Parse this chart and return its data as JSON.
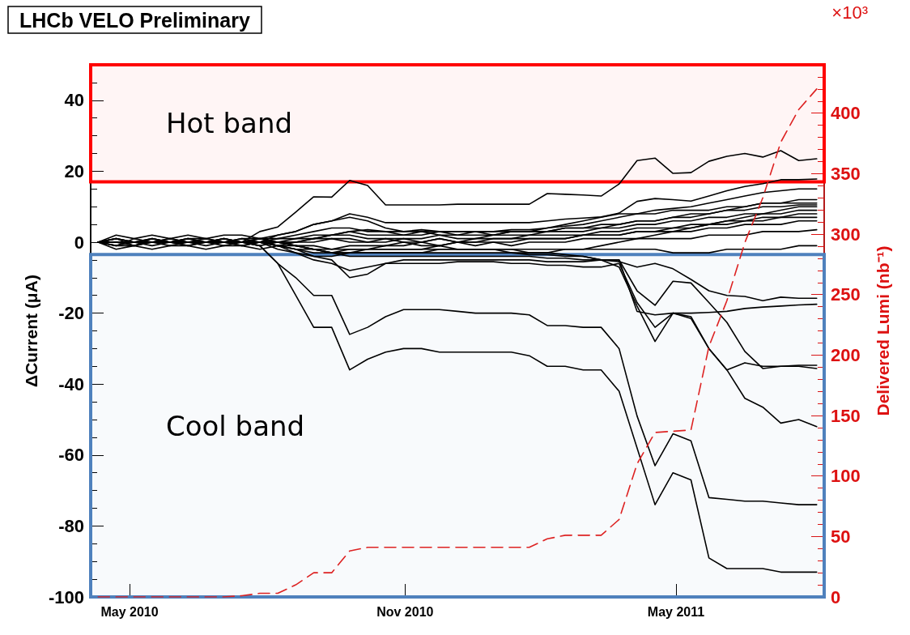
{
  "chart_data": {
    "type": "line",
    "title": "LHCb VELO Preliminary",
    "ylabel": "ΔCurrent (μA)",
    "y2label": "Delivered Lumi (nb⁻¹)",
    "annotations": [
      "×10³"
    ],
    "x": [
      "2010-04-10",
      "2010-04-22",
      "2010-05-04",
      "2010-05-16",
      "2010-05-28",
      "2010-06-09",
      "2010-06-21",
      "2010-07-03",
      "2010-07-15",
      "2010-07-27",
      "2010-08-08",
      "2010-08-20",
      "2010-09-01",
      "2010-09-13",
      "2010-09-25",
      "2010-10-07",
      "2010-10-19",
      "2010-10-31",
      "2010-11-12",
      "2010-11-24",
      "2010-12-06",
      "2010-12-18",
      "2010-12-30",
      "2011-01-11",
      "2011-01-23",
      "2011-02-04",
      "2011-02-16",
      "2011-02-28",
      "2011-03-12",
      "2011-03-24",
      "2011-04-05",
      "2011-04-17",
      "2011-04-29",
      "2011-05-11",
      "2011-05-23",
      "2011-06-04",
      "2011-06-16",
      "2011-06-28",
      "2011-07-10",
      "2011-07-22",
      "2011-08-03"
    ],
    "xlim": [
      "2010-04-05",
      "2011-08-08"
    ],
    "xticks": [
      {
        "value": "2010-05-01",
        "label": "May 2010"
      },
      {
        "value": "2010-11-01",
        "label": "Nov 2010"
      },
      {
        "value": "2011-05-01",
        "label": "May 2011"
      }
    ],
    "ylim": [
      -100,
      50
    ],
    "yticks": [
      -100,
      -80,
      -60,
      -40,
      -20,
      0,
      20,
      40
    ],
    "y2lim": [
      0,
      440
    ],
    "y2ticks": [
      0,
      50,
      100,
      150,
      200,
      250,
      300,
      350,
      400
    ],
    "marker": "none",
    "line_style": "solid",
    "bands": [
      {
        "axis": "y",
        "from": 17,
        "to": 50,
        "label": "Hot band",
        "color": "#ff0000"
      },
      {
        "axis": "y",
        "from": -100,
        "to": -3.5,
        "label": "Cool band",
        "color": "#4f81bd"
      }
    ],
    "series": [
      {
        "color": "#000000",
        "values": [
          0,
          0,
          0,
          0,
          0,
          0,
          0,
          0,
          0,
          -1,
          -6,
          -15,
          -24,
          -24,
          -36,
          -33,
          -31,
          -30,
          -30,
          -31,
          -31,
          -31,
          -31,
          -31,
          -32,
          -35,
          -35,
          -36,
          -36,
          -42,
          -58,
          -74,
          -65,
          -67,
          -89,
          -92,
          -92,
          -92,
          -93,
          -93,
          -93
        ]
      },
      {
        "color": "#000000",
        "values": [
          0,
          0,
          0,
          0,
          0,
          0,
          0,
          0,
          0,
          -1,
          -6,
          -10,
          -15,
          -15,
          -26,
          -24,
          -21,
          -19,
          -19,
          -19,
          -19.5,
          -20,
          -20,
          -20,
          -20.5,
          -23.5,
          -23.5,
          -24,
          -24,
          -30,
          -49,
          -63,
          -54,
          -56,
          -72,
          -72.5,
          -73,
          -73,
          -73.5,
          -74,
          -74
        ]
      },
      {
        "color": "#000000",
        "values": [
          0,
          0,
          0,
          0,
          0,
          0,
          0,
          0,
          0,
          0,
          -1,
          -3,
          -5,
          -6,
          -8,
          -7,
          -6,
          -6,
          -6,
          -6,
          -5.5,
          -5.5,
          -5.5,
          -6,
          -6,
          -6.5,
          -6.5,
          -7,
          -7,
          -6,
          -17,
          -24,
          -20,
          -21,
          -30,
          -36,
          -44,
          -46.5,
          -51,
          -50,
          -52
        ]
      },
      {
        "color": "#000000",
        "values": [
          0,
          0,
          0,
          0,
          0,
          0,
          0,
          0,
          0,
          0,
          -1,
          -2,
          -4,
          -5,
          -10,
          -9,
          -6,
          -5,
          -5,
          -5,
          -5,
          -5,
          -5,
          -5,
          -5,
          -5.5,
          -5.5,
          -5.5,
          -5,
          -5,
          -13.7,
          -17.8,
          -11,
          -11.5,
          -17,
          -22.6,
          -30.8,
          -35.6,
          -35,
          -35,
          -35.6
        ]
      },
      {
        "color": "#000000",
        "values": [
          0,
          0,
          0,
          0,
          0,
          0,
          0,
          0,
          0,
          0,
          -1,
          -1,
          -2,
          -3,
          -4,
          -4,
          -4,
          -4,
          -4,
          -4,
          -4,
          -4,
          -4,
          -4,
          -4,
          -4.5,
          -4.5,
          -5,
          -5,
          -7,
          -18,
          -28,
          -20,
          -21.5,
          -30,
          -36,
          -34,
          -35,
          -35,
          -34.7,
          -34.7
        ]
      },
      {
        "color": "#000000",
        "values": [
          0,
          0,
          0,
          0,
          0,
          0,
          0,
          0,
          0,
          0,
          0,
          -1,
          -2,
          -3,
          -3,
          -3,
          -3,
          -3,
          -3,
          -3,
          -3,
          -3,
          -3,
          -3,
          -3.5,
          -3.5,
          -4,
          -4,
          -5,
          -5.5,
          -7,
          -6,
          -7.5,
          -10.5,
          -13.7,
          -15,
          -15.3,
          -16.5,
          -15.5,
          -15.8,
          -15.8
        ]
      },
      {
        "color": "#000000",
        "values": [
          0,
          0,
          0,
          0,
          0,
          0,
          0,
          0,
          0,
          0,
          0,
          -1,
          -1,
          -2,
          -2,
          -2,
          -2,
          -2,
          -2,
          -2,
          -2,
          -2,
          -2,
          -2,
          -3,
          -3,
          -3.5,
          -4,
          -5,
          -5,
          -19.5,
          -20.5,
          -20,
          -20,
          -19.8,
          -19.5,
          -18.7,
          -18.3,
          -18,
          -17.7,
          -17.5
        ]
      },
      {
        "color": "#000000",
        "values": [
          0,
          0,
          0,
          0,
          0,
          0,
          0,
          0,
          0,
          3,
          4.3,
          8.5,
          12.8,
          12.7,
          17.4,
          16,
          10.5,
          10.5,
          10.5,
          10.5,
          10.7,
          10.7,
          10.7,
          10.7,
          10.7,
          13.7,
          13.5,
          13.3,
          13,
          16.4,
          23,
          23.7,
          19.4,
          19.6,
          22.8,
          24.2,
          25,
          24,
          25.8,
          23,
          23.5
        ]
      },
      {
        "color": "#000000",
        "values": [
          0,
          0,
          0,
          0,
          0,
          0,
          0,
          0,
          0,
          0,
          2,
          3,
          5,
          6,
          8,
          7,
          5.5,
          5.5,
          5.5,
          5.5,
          5.5,
          5.5,
          5.5,
          5.5,
          5.5,
          6,
          6.5,
          6.8,
          7.1,
          8.2,
          11.5,
          12.3,
          12,
          11.6,
          13,
          14.5,
          15.7,
          16.5,
          17.6,
          17.6,
          17.8
        ]
      },
      {
        "color": "#000000",
        "values": [
          0,
          0,
          0,
          0,
          0,
          0,
          0,
          0,
          0,
          0,
          0,
          0,
          1,
          2,
          3,
          3.5,
          3,
          3,
          3.5,
          3,
          3,
          3,
          3,
          3.5,
          3.5,
          4,
          4.5,
          5,
          6,
          7,
          8,
          9,
          9.5,
          10,
          11,
          12,
          13,
          14,
          14.5,
          15,
          15
        ]
      },
      {
        "color": "#000000",
        "values": [
          0,
          1,
          -1,
          1,
          0,
          1,
          0,
          1,
          0,
          1,
          0,
          1,
          2,
          2,
          3,
          2,
          2,
          2,
          2,
          3,
          2,
          2,
          2,
          3,
          3,
          3,
          4,
          4,
          5,
          5,
          6,
          6,
          7,
          7,
          8,
          9,
          10,
          11,
          11,
          12,
          12
        ]
      },
      {
        "color": "#000000",
        "values": [
          0,
          -1,
          1,
          0,
          1,
          0,
          1,
          0,
          1,
          0,
          1,
          1,
          1,
          2,
          2,
          1,
          1,
          1,
          1,
          2,
          1,
          1,
          2,
          2,
          2,
          3,
          3,
          3,
          4,
          4,
          5,
          5,
          6,
          6,
          7,
          7,
          8,
          8,
          9,
          10,
          10
        ]
      },
      {
        "color": "#000000",
        "values": [
          0,
          1,
          0,
          -1,
          0,
          1,
          0,
          -1,
          0,
          1,
          0,
          0,
          1,
          1,
          1,
          0,
          0,
          1,
          0,
          1,
          0,
          1,
          1,
          1,
          2,
          2,
          2,
          2,
          3,
          3,
          4,
          4,
          4,
          5,
          5,
          6,
          6,
          7,
          7,
          8,
          8
        ]
      },
      {
        "color": "#000000",
        "values": [
          0,
          -1,
          0,
          1,
          0,
          -1,
          0,
          1,
          0,
          0,
          -1,
          0,
          0,
          1,
          0,
          0,
          1,
          0,
          0,
          1,
          0,
          0,
          1,
          1,
          1,
          1,
          1,
          2,
          2,
          2,
          3,
          3,
          3,
          3,
          4,
          4,
          5,
          5,
          5,
          6,
          6
        ]
      },
      {
        "color": "#000000",
        "values": [
          0,
          1,
          0,
          0,
          1,
          0,
          0,
          1,
          0,
          -1,
          0,
          -1,
          -2,
          -2,
          -1,
          -1,
          -1,
          0,
          -1,
          -1,
          0,
          0,
          0,
          -1,
          0,
          0,
          0,
          1,
          1,
          1,
          1,
          1,
          1,
          1,
          2,
          2,
          2,
          3,
          3,
          3,
          3.5
        ]
      },
      {
        "color": "#000000",
        "values": [
          0,
          0,
          -1,
          0,
          0,
          -1,
          0,
          0,
          -1,
          0,
          -1,
          -2,
          -3,
          -3,
          -2,
          -2,
          -2,
          -2,
          -2,
          -1,
          -2,
          -2,
          -2,
          -2,
          -2,
          -2,
          -2,
          -2,
          -2,
          -2,
          -2,
          -2,
          -3,
          -3,
          -3,
          -2,
          -2,
          -2,
          -2,
          -1,
          -1
        ]
      },
      {
        "color": "#000000",
        "values": [
          0,
          1,
          0,
          1,
          0,
          1,
          1,
          0,
          1,
          1,
          2,
          3,
          5,
          6,
          7,
          6,
          4,
          3,
          3,
          3,
          3,
          3,
          3,
          3,
          3,
          4,
          5,
          6,
          7,
          8,
          8,
          8,
          9,
          9,
          9,
          10,
          10,
          11,
          11,
          11,
          11
        ]
      },
      {
        "color": "#000000",
        "values": [
          0,
          -1,
          -1,
          0,
          -1,
          0,
          -1,
          0,
          -1,
          0,
          -2,
          -3,
          -4,
          -4,
          -3,
          -3,
          -3,
          -3,
          -3,
          -2,
          -2,
          -2,
          -2,
          -3,
          -3,
          -3,
          -2,
          -2,
          -1,
          0,
          1,
          2,
          3,
          4,
          5,
          6,
          7,
          8,
          8,
          9,
          9
        ]
      },
      {
        "color": "#000000",
        "values": [
          0,
          2,
          1,
          2,
          1,
          2,
          1,
          2,
          2,
          1,
          1,
          2,
          3,
          4,
          4,
          3,
          3,
          2,
          3,
          2,
          2,
          3,
          2,
          3,
          3,
          3,
          4,
          4,
          4,
          5,
          6,
          6,
          7,
          8,
          8,
          9,
          9,
          10,
          10,
          10.5,
          10.5
        ]
      },
      {
        "color": "#000000",
        "values": [
          0,
          -2,
          -1,
          -2,
          -1,
          -1,
          -2,
          -1,
          -1,
          -2,
          -1,
          -2,
          -2,
          -3,
          -3,
          -2,
          -1,
          -1,
          0,
          -1,
          0,
          -1,
          0,
          0,
          1,
          1,
          1,
          2,
          2,
          2,
          3,
          3,
          4,
          4,
          5,
          5,
          6,
          6,
          7,
          7,
          7
        ]
      },
      {
        "color": "#dd2222",
        "axis": "y2",
        "line_style": "dashed",
        "values": [
          0,
          0,
          0,
          0,
          0,
          0,
          0,
          0,
          1,
          3,
          3,
          10,
          20,
          20,
          38,
          41,
          41,
          41,
          41,
          41,
          41,
          41,
          41,
          41,
          41,
          48,
          51,
          51,
          51,
          64,
          110,
          136,
          137,
          138,
          207,
          245,
          293,
          330,
          376,
          403,
          420
        ]
      }
    ]
  }
}
